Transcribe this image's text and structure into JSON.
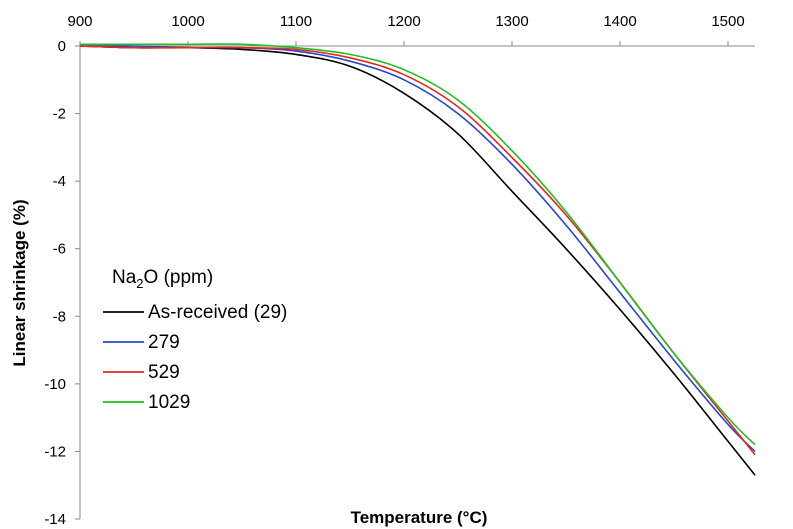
{
  "chart_data": {
    "type": "line",
    "xlabel": "Temperature (°C)",
    "ylabel": "Linear shrinkage (%)",
    "xlim": [
      900,
      1525
    ],
    "ylim": [
      -14,
      0
    ],
    "x_ticks": [
      900,
      1000,
      1100,
      1200,
      1300,
      1400,
      1500
    ],
    "y_ticks": [
      0,
      -2,
      -4,
      -6,
      -8,
      -10,
      -12,
      -14
    ],
    "x_tick_labels": [
      "900",
      "1000",
      "1100",
      "1200",
      "1300",
      "1400",
      "1500"
    ],
    "y_tick_labels": [
      "0",
      "-2",
      "-4",
      "-6",
      "-8",
      "-10",
      "-12",
      "-14"
    ],
    "x_axis_position": "top",
    "grid": false,
    "legend": {
      "title_main": "Na",
      "title_sub": "2",
      "title_rest": "O (ppm)",
      "placement": "center-left"
    },
    "series": [
      {
        "name": "As-received (29)",
        "color": "#000000",
        "x": [
          900,
          950,
          1000,
          1050,
          1100,
          1150,
          1200,
          1250,
          1300,
          1350,
          1400,
          1450,
          1500,
          1525
        ],
        "y": [
          0,
          -0.05,
          -0.05,
          -0.1,
          -0.25,
          -0.6,
          -1.4,
          -2.6,
          -4.3,
          -6.0,
          -7.8,
          -9.7,
          -11.7,
          -12.7
        ]
      },
      {
        "name": "279",
        "color": "#2347d6",
        "x": [
          900,
          950,
          1000,
          1050,
          1100,
          1150,
          1200,
          1250,
          1300,
          1350,
          1400,
          1450,
          1500,
          1525
        ],
        "y": [
          0,
          0,
          -0.05,
          -0.05,
          -0.15,
          -0.45,
          -1.0,
          -2.0,
          -3.5,
          -5.3,
          -7.3,
          -9.3,
          -11.2,
          -12.0
        ]
      },
      {
        "name": "529",
        "color": "#e8261b",
        "x": [
          900,
          950,
          1000,
          1050,
          1100,
          1150,
          1200,
          1250,
          1300,
          1350,
          1400,
          1450,
          1500,
          1525
        ],
        "y": [
          0,
          -0.05,
          -0.05,
          -0.05,
          -0.1,
          -0.35,
          -0.85,
          -1.8,
          -3.3,
          -5.0,
          -7.0,
          -9.1,
          -11.1,
          -12.1
        ]
      },
      {
        "name": "1029",
        "color": "#1fbf1f",
        "x": [
          900,
          950,
          1000,
          1050,
          1100,
          1150,
          1200,
          1250,
          1300,
          1350,
          1400,
          1450,
          1500,
          1525
        ],
        "y": [
          0.05,
          0.05,
          0.05,
          0.05,
          -0.05,
          -0.25,
          -0.7,
          -1.6,
          -3.1,
          -4.9,
          -7.0,
          -9.1,
          -11.0,
          -11.8
        ]
      }
    ]
  }
}
